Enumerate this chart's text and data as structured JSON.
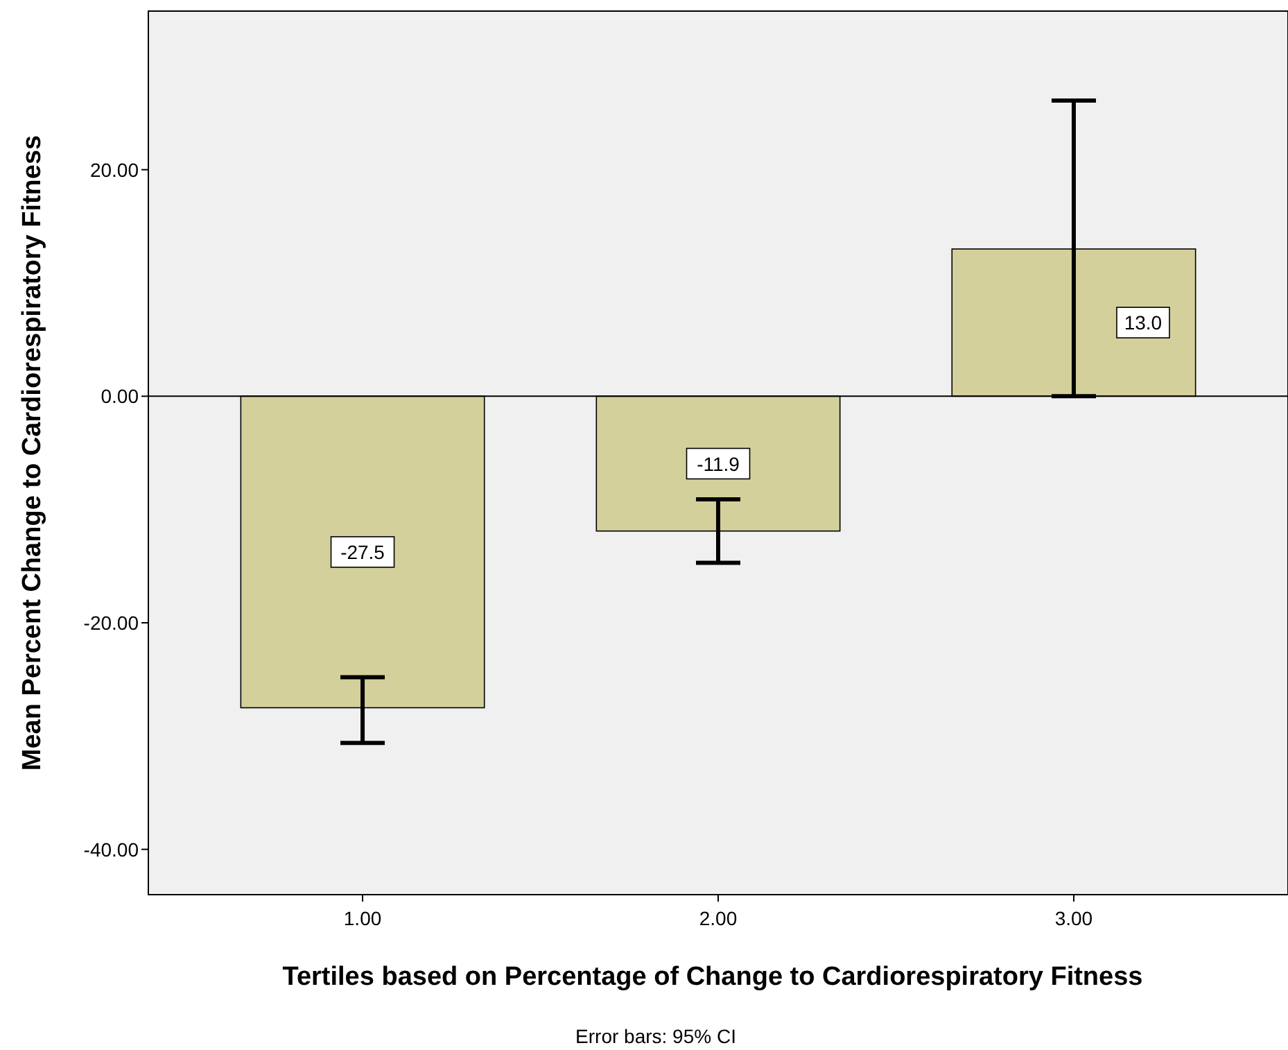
{
  "chart_data": {
    "type": "bar",
    "xlabel": "Tertiles based on Percentage of Change to Cardiorespiratory Fitness",
    "ylabel": "Mean Percent Change to Cardiorespiratory Fitness",
    "categories": [
      "1.00",
      "2.00",
      "3.00"
    ],
    "values": [
      -27.5,
      -11.9,
      13.0
    ],
    "color": "#d4d09b",
    "errors": [
      [
        -30.6,
        -24.8
      ],
      [
        -14.7,
        -9.1
      ],
      [
        0.0,
        26.1
      ]
    ],
    "value_labels": [
      "-27.5",
      "-11.9",
      "13.0"
    ],
    "ylim": [
      -44,
      34
    ],
    "yticks": [
      {
        "value": -40,
        "label": "-40.00"
      },
      {
        "value": -20,
        "label": "-20.00"
      },
      {
        "value": 0,
        "label": "0.00"
      },
      {
        "value": 20,
        "label": "20.00"
      }
    ],
    "ref_lines": [
      {
        "axis": "y",
        "value": 0,
        "color": "#000000"
      }
    ],
    "annotations": [
      "Error bars: 95% CI"
    ]
  }
}
